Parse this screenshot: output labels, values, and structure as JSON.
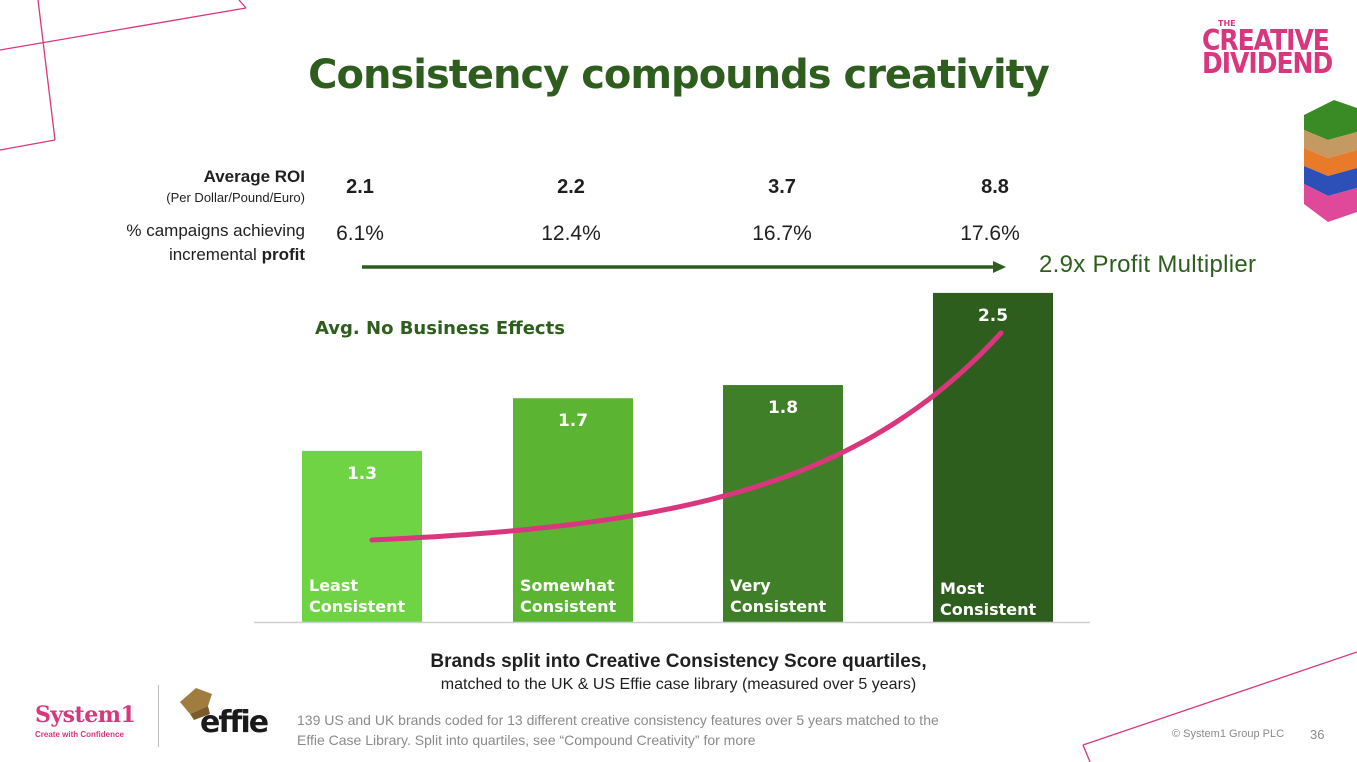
{
  "title": "Consistency compounds creativity",
  "badge": {
    "line1": "THE",
    "line2": "CREATIVE",
    "line3": "DIVIDEND"
  },
  "metrics": {
    "roi_label": "Average ROI",
    "roi_sublabel": "(Per Dollar/Pound/Euro)",
    "profit_label_line1": "% campaigns achieving",
    "profit_label_line2_plain": "incremental ",
    "profit_label_line2_bold": "profit",
    "roi_values": [
      "2.1",
      "2.2",
      "3.7",
      "8.8"
    ],
    "profit_values": [
      "6.1%",
      "12.4%",
      "16.7%",
      "17.6%"
    ],
    "multiplier": "2.9x Profit Multiplier"
  },
  "chart_data": {
    "type": "bar",
    "title": "",
    "annotation": "Avg. No Business Effects",
    "categories": [
      [
        "Least",
        "Consistent"
      ],
      [
        "Somewhat",
        "Consistent"
      ],
      [
        "Very",
        "Consistent"
      ],
      [
        "Most",
        "Consistent"
      ]
    ],
    "values": [
      1.3,
      1.7,
      1.8,
      2.5
    ],
    "value_labels": [
      "1.3",
      "1.7",
      "1.8",
      "2.5"
    ],
    "bar_colors": [
      "#6fd443",
      "#5bb533",
      "#3f7f27",
      "#2e5e1e"
    ],
    "trend_color": "#d9367e",
    "trend": "exponential",
    "ylim": [
      0,
      2.75
    ],
    "grid": false,
    "xlabel": "Brands split into Creative Consistency Score quartiles,",
    "xlabel_sub": "matched to the UK & US Effie case library (measured over 5 years)"
  },
  "footnote": {
    "line1": "139 US and UK brands coded for 13 different creative consistency features over 5 years matched to the",
    "line2": "Effie Case Library. Split into quartiles, see “Compound Creativity” for more"
  },
  "logos": {
    "system1_name": "System1",
    "system1_tagline": "Create with Confidence",
    "effie": "effie"
  },
  "copyright": "© System1 Group PLC",
  "page_number": "36",
  "colors": {
    "title_green": "#2e5e1e",
    "brand_pink": "#d9367e",
    "arrow_green": "#2e5e1e"
  }
}
